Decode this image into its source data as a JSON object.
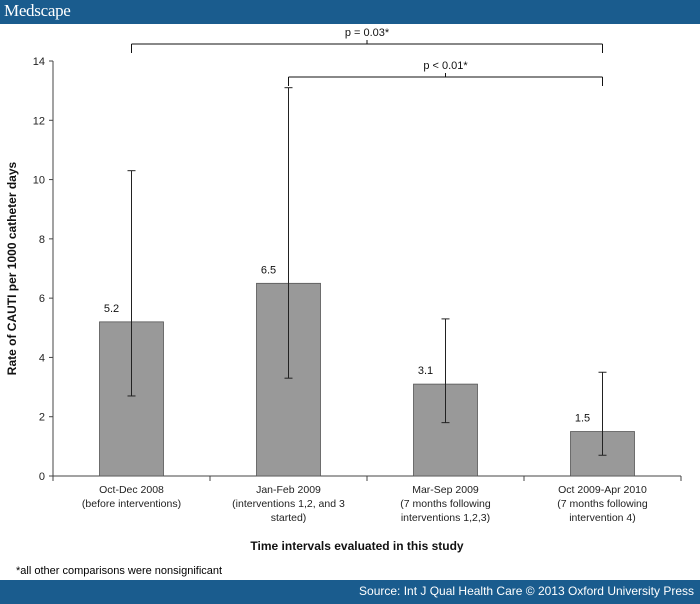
{
  "header": {
    "brand": "Medscape"
  },
  "footer": {
    "source": "Source: Int J Qual Health Care © 2013 Oxford University Press"
  },
  "footnote": "*all other comparisons were nonsignificant",
  "colors": {
    "bar_bars": "#999999",
    "header": "#1a5c8e"
  },
  "chart_data": {
    "type": "bar",
    "title": "",
    "xlabel": "Time intervals evaluated in this study",
    "ylabel": "Rate of CAUTI per 1000 catheter days",
    "ylim": [
      0,
      14
    ],
    "yticks": [
      0,
      2,
      4,
      6,
      8,
      10,
      12,
      14
    ],
    "grid": false,
    "categories": [
      [
        "Oct-Dec 2008",
        "(before interventions)"
      ],
      [
        "Jan-Feb 2009",
        "(interventions 1,2, and 3",
        "started)"
      ],
      [
        "Mar-Sep 2009",
        "(7 months following",
        "interventions 1,2,3)"
      ],
      [
        "Oct 2009-Apr 2010",
        "(7 months following",
        "intervention 4)"
      ]
    ],
    "values": [
      5.2,
      6.5,
      3.1,
      1.5
    ],
    "value_labels": [
      "5.2",
      "6.5",
      "3.1",
      "1.5"
    ],
    "error_low": [
      2.7,
      3.3,
      1.8,
      0.7
    ],
    "error_high": [
      10.3,
      13.1,
      5.3,
      3.5
    ],
    "annotations": [
      {
        "text": "p = 0.03*",
        "from_category": 0,
        "to_category": 3,
        "level": 14
      },
      {
        "text": "p < 0.01*",
        "from_category": 1,
        "to_category": 3,
        "level": 13.4
      }
    ]
  }
}
